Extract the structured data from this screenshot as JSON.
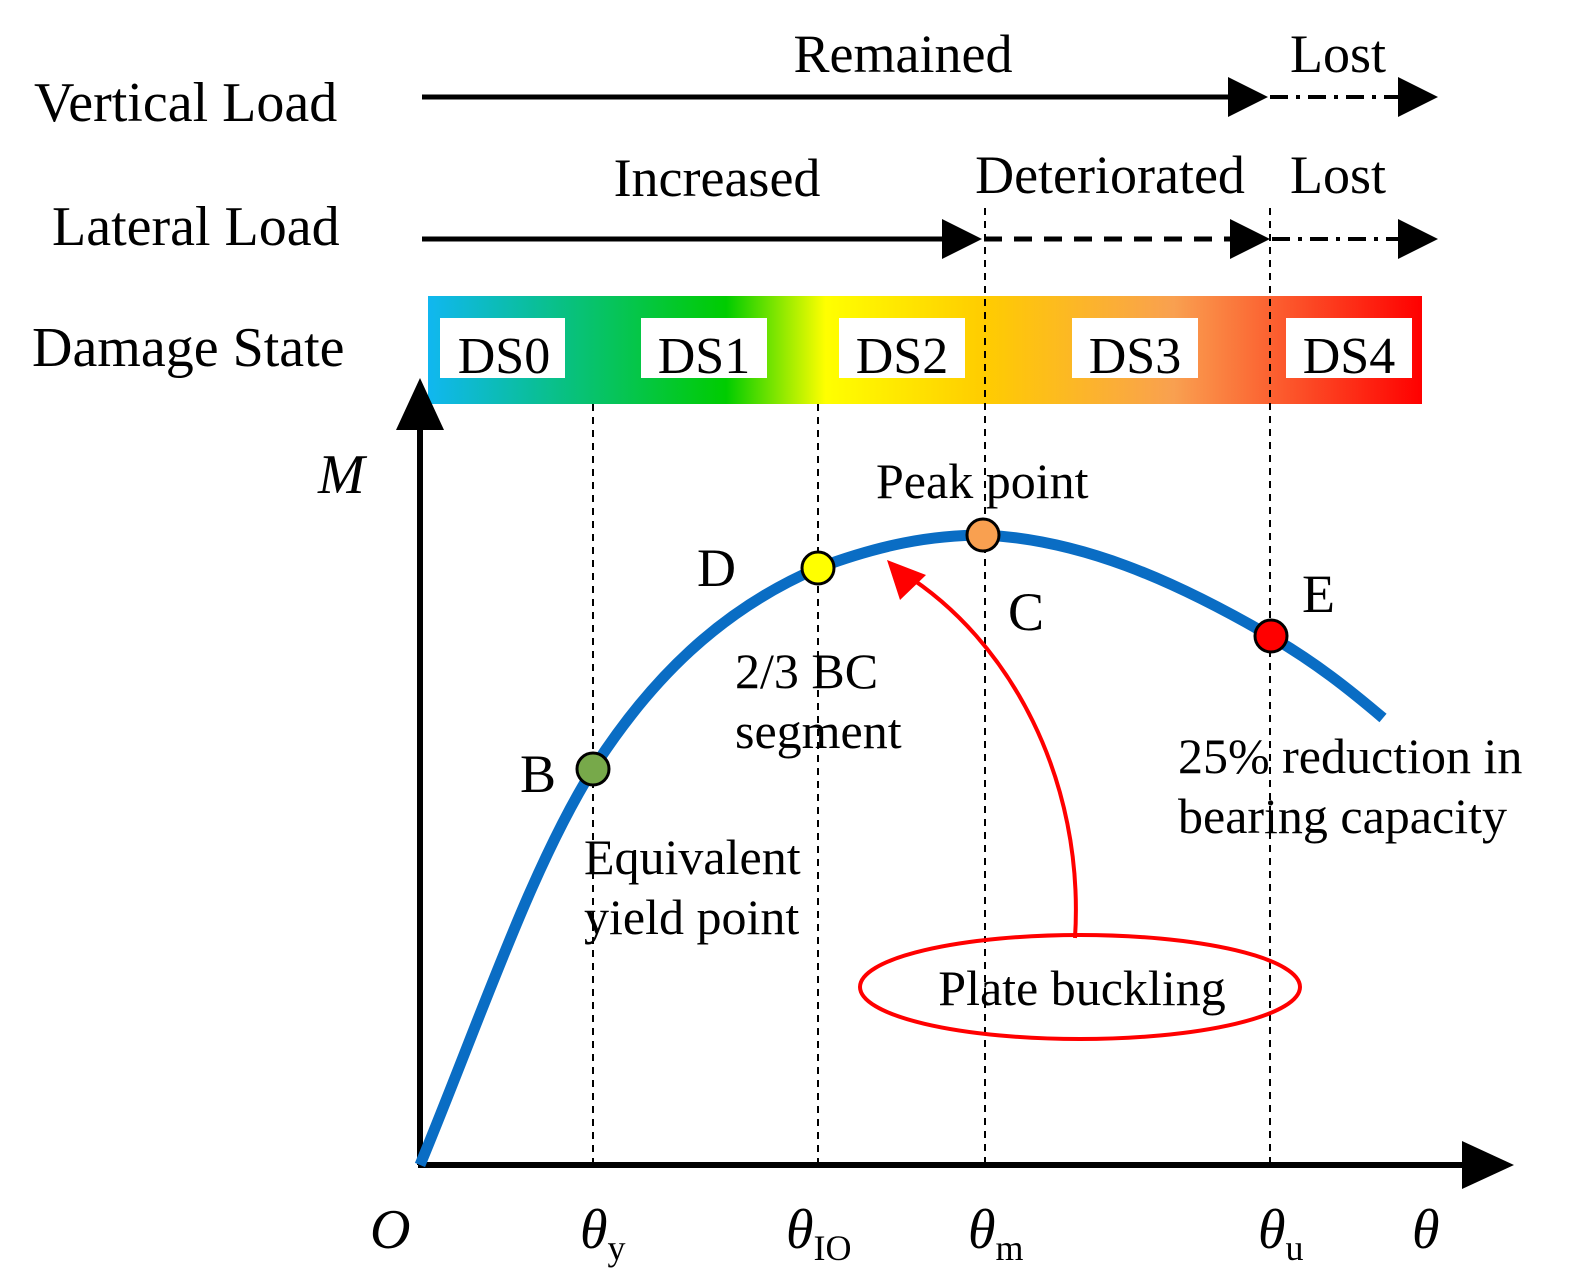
{
  "rows": {
    "vertical": {
      "label": "Vertical Load",
      "segments": [
        "Remained",
        "Lost"
      ]
    },
    "lateral": {
      "label": "Lateral Load",
      "segments": [
        "Increased",
        "Deteriorated",
        "Lost"
      ]
    },
    "damage": {
      "label": "Damage State",
      "states": [
        "DS0",
        "DS1",
        "DS2",
        "DS3",
        "DS4"
      ]
    }
  },
  "axes": {
    "y": "M",
    "origin": "O",
    "x": "θ",
    "ticks": [
      {
        "sym": "θ",
        "sub": "y"
      },
      {
        "sym": "θ",
        "sub": "IO"
      },
      {
        "sym": "θ",
        "sub": "m"
      },
      {
        "sym": "θ",
        "sub": "u"
      }
    ]
  },
  "points": {
    "B": {
      "label": "B",
      "note": [
        "Equivalent",
        "yield point"
      ],
      "color": "#77a94a"
    },
    "D": {
      "label": "D",
      "note": [
        "2/3 BC",
        "segment"
      ],
      "color": "#ffff00"
    },
    "C": {
      "label": "C",
      "note": [
        "Peak point"
      ],
      "color": "#f9a050"
    },
    "E": {
      "label": "E",
      "note": [
        "25% reduction in",
        "bearing capacity"
      ],
      "color": "#ff0000"
    }
  },
  "callout": "Plate buckling",
  "colors": {
    "curve": "#0a6dc4",
    "callout": "#ff0000",
    "gradient": [
      "#10b7f0",
      "#00c800",
      "#ffff00",
      "#f9a050",
      "#ff0000"
    ]
  }
}
